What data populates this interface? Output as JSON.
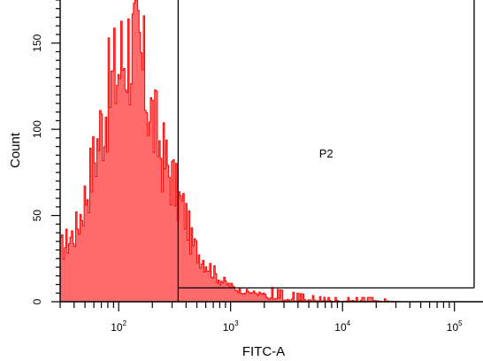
{
  "chart_data": {
    "type": "area",
    "title": "",
    "xlabel": "FITC-A",
    "ylabel": "Count",
    "x_scale": "log",
    "xlim": [
      30,
      180000
    ],
    "ylim": [
      0,
      175
    ],
    "x_ticks": [
      {
        "base": "10",
        "exp": "2",
        "value": 100
      },
      {
        "base": "10",
        "exp": "3",
        "value": 1000
      },
      {
        "base": "10",
        "exp": "4",
        "value": 10000
      },
      {
        "base": "10",
        "exp": "5",
        "value": 100000
      }
    ],
    "y_ticks": [
      {
        "label": "0",
        "value": 0
      },
      {
        "label": "50",
        "value": 50
      },
      {
        "label": "100",
        "value": 100
      },
      {
        "label": "150",
        "value": 150
      }
    ],
    "grid": false,
    "series": [
      {
        "color": "#ff0000",
        "fill_color": "#ff6b6b",
        "points": [
          [
            30,
            30
          ],
          [
            36,
            36
          ],
          [
            42,
            42
          ],
          [
            50,
            60
          ],
          [
            60,
            82
          ],
          [
            70,
            102
          ],
          [
            80,
            118
          ],
          [
            90,
            128
          ],
          [
            100,
            136
          ],
          [
            115,
            146
          ],
          [
            130,
            150
          ],
          [
            150,
            144
          ],
          [
            170,
            130
          ],
          [
            200,
            106
          ],
          [
            250,
            84
          ],
          [
            300,
            72
          ],
          [
            340,
            60
          ],
          [
            400,
            50
          ],
          [
            450,
            34
          ],
          [
            550,
            26
          ],
          [
            650,
            20
          ],
          [
            800,
            13
          ],
          [
            1000,
            9
          ],
          [
            1300,
            6
          ],
          [
            1700,
            5
          ],
          [
            2500,
            3
          ],
          [
            4000,
            2
          ],
          [
            7000,
            1
          ],
          [
            12000,
            1
          ],
          [
            20000,
            1
          ],
          [
            35000,
            0
          ],
          [
            60000,
            0
          ]
        ]
      }
    ],
    "gates": [
      {
        "label": "P2",
        "x_range": [
          340,
          150000
        ],
        "y_level": 8
      }
    ]
  }
}
